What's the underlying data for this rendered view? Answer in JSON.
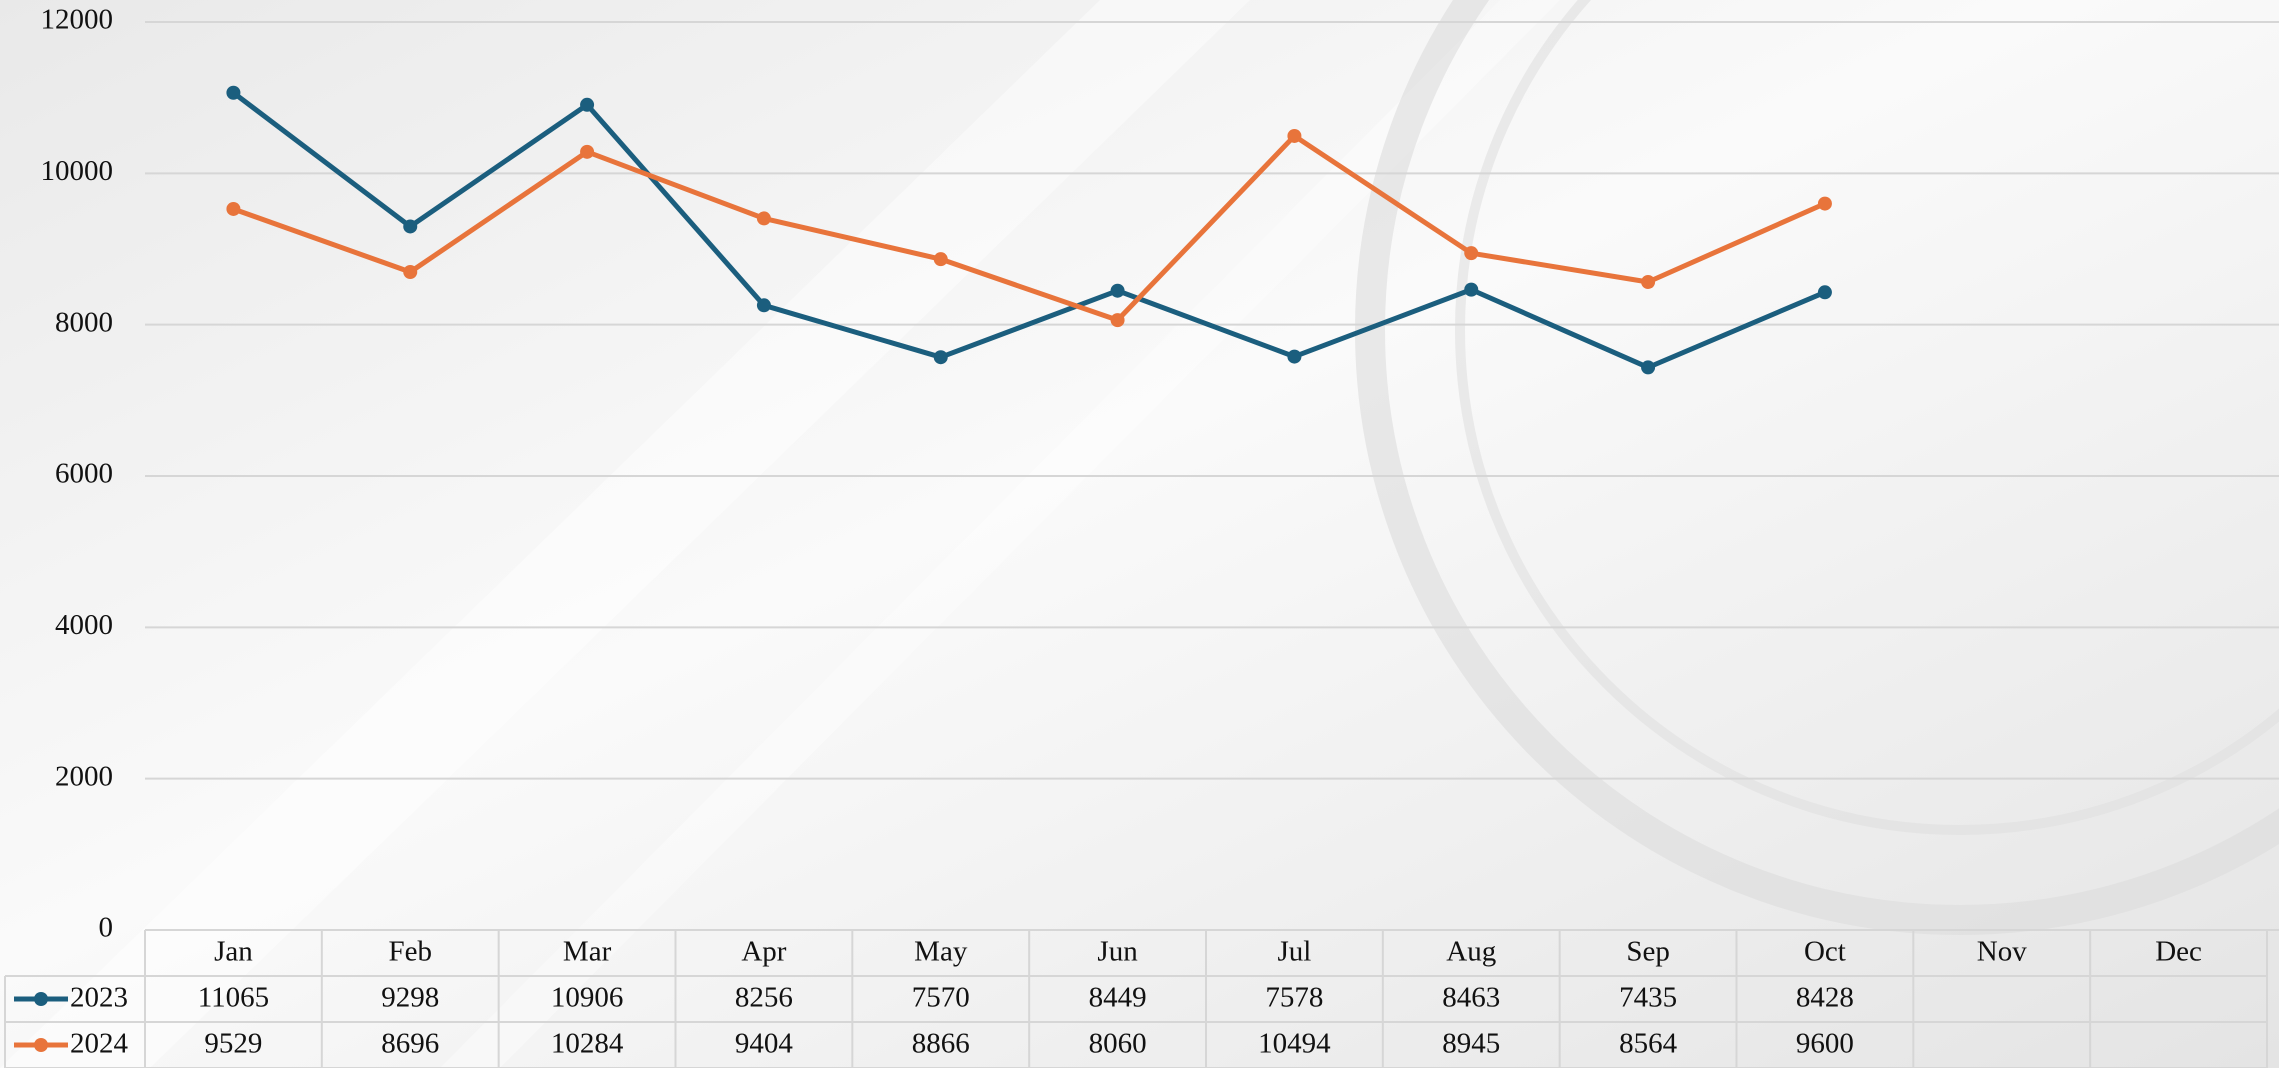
{
  "chart_data": {
    "type": "line",
    "categories": [
      "Jan",
      "Feb",
      "Mar",
      "Apr",
      "May",
      "Jun",
      "Jul",
      "Aug",
      "Sep",
      "Oct",
      "Nov",
      "Dec"
    ],
    "series": [
      {
        "name": "2023",
        "color": "#1b5e7e",
        "values": [
          11065,
          9298,
          10906,
          8256,
          7570,
          8449,
          7578,
          8463,
          7435,
          8428,
          null,
          null
        ]
      },
      {
        "name": "2024",
        "color": "#e8743b",
        "values": [
          9529,
          8696,
          10284,
          9404,
          8866,
          8060,
          10494,
          8945,
          8564,
          9600,
          null,
          null
        ]
      }
    ],
    "ylim": [
      0,
      12000
    ],
    "yticks": [
      0,
      2000,
      4000,
      6000,
      8000,
      10000,
      12000
    ],
    "grid": true,
    "legend": "bottom"
  }
}
